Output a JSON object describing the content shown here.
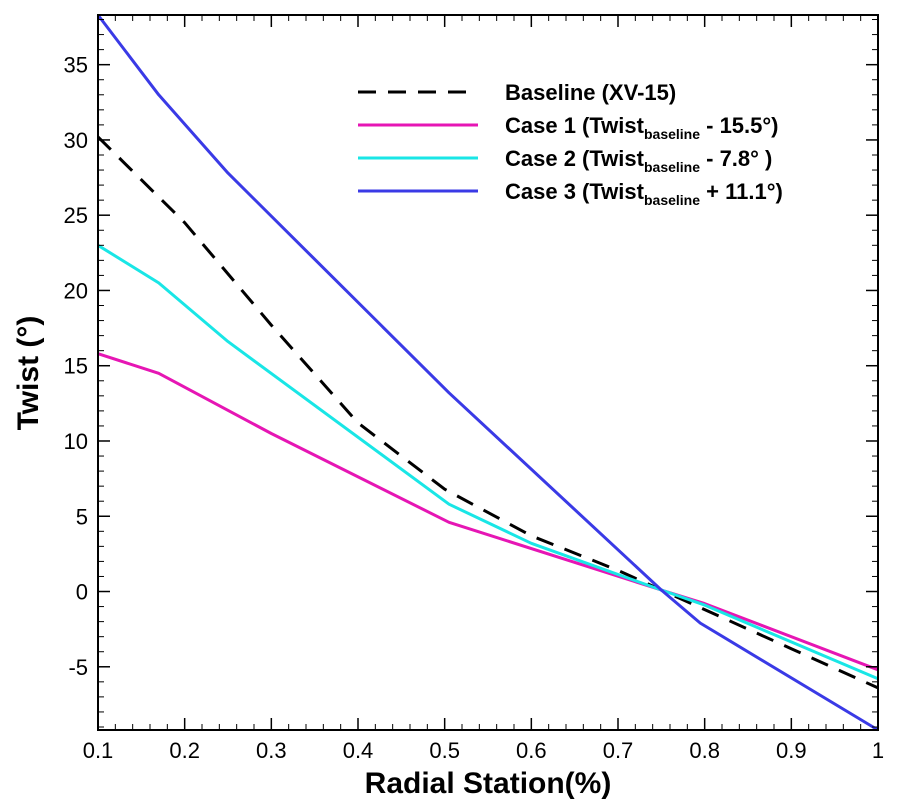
{
  "chart_data": {
    "type": "line",
    "xlabel": "Radial Station(%)",
    "ylabel": "Twist (°)",
    "xlim": [
      0.1,
      1.0
    ],
    "ylim": [
      -9.2,
      38.3
    ],
    "xticks": [
      0.1,
      0.2,
      0.3,
      0.4,
      0.5,
      0.6,
      0.7,
      0.8,
      0.9,
      1.0
    ],
    "xtick_labels": [
      "0.1",
      "0.2",
      "0.3",
      "0.4",
      "0.5",
      "0.6",
      "0.7",
      "0.8",
      "0.9",
      "1"
    ],
    "yticks": [
      -5,
      0,
      5,
      10,
      15,
      20,
      25,
      30,
      35
    ],
    "ytick_labels": [
      "-5",
      "0",
      "5",
      "10",
      "15",
      "20",
      "25",
      "30",
      "35"
    ],
    "grid": false,
    "legend_position": "top-right",
    "series": [
      {
        "name": "Baseline (XV-15)",
        "legend_main": "Baseline (XV-15)",
        "legend_sub": "",
        "legend_tail": "",
        "color": "#000000",
        "dash": "dashed",
        "x": [
          0.1,
          0.2,
          0.3,
          0.4,
          0.5,
          0.6,
          0.7,
          0.75,
          0.8,
          0.9,
          1.0
        ],
        "y": [
          30.2,
          24.5,
          17.7,
          11.2,
          6.8,
          3.7,
          1.4,
          0.1,
          -1.2,
          -3.8,
          -6.4
        ]
      },
      {
        "name": "Case 1 (Twistbaseline - 15.5°)",
        "legend_main": "Case 1 (Twist",
        "legend_sub": "baseline",
        "legend_tail": " - 15.5°)",
        "color": "#e616b4",
        "dash": "solid",
        "x": [
          0.1,
          0.17,
          0.3,
          0.505,
          0.75,
          0.8,
          1.0
        ],
        "y": [
          15.8,
          14.5,
          10.5,
          4.6,
          0.1,
          -0.8,
          -5.2
        ]
      },
      {
        "name": "Case 2 (Twistbaseline - 7.8°)",
        "legend_main": "Case 2 (Twist",
        "legend_sub": "baseline",
        "legend_tail": " - 7.8°   )",
        "color": "#19e6e6",
        "dash": "solid",
        "x": [
          0.1,
          0.17,
          0.25,
          0.505,
          0.6,
          0.75,
          0.8,
          1.0
        ],
        "y": [
          23.0,
          20.5,
          16.6,
          5.8,
          3.2,
          0.1,
          -0.9,
          -5.8
        ]
      },
      {
        "name": "Case 3 (Twistbaseline + 11.1°)",
        "legend_main": "Case 3 (Twist",
        "legend_sub": "baseline",
        "legend_tail": " + 11.1°)",
        "color": "#3a3ae6",
        "dash": "solid",
        "x": [
          0.1,
          0.17,
          0.25,
          0.505,
          0.75,
          0.795,
          1.0
        ],
        "y": [
          38.3,
          33.0,
          27.8,
          13.2,
          0.1,
          -2.1,
          -9.2
        ]
      }
    ]
  }
}
